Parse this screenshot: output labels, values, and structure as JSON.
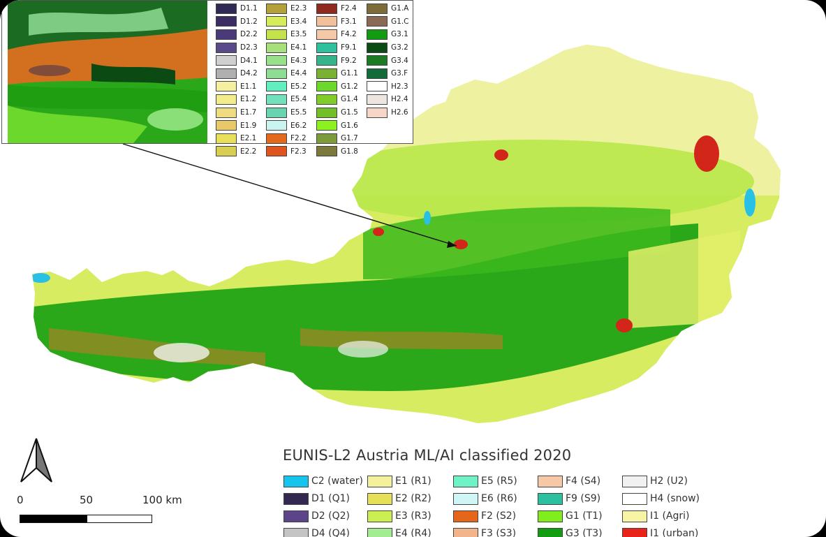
{
  "title": "EUNIS-L2 Austria ML/AI classified 2020",
  "scalebar": {
    "labels": [
      "0",
      "50",
      "100 km"
    ]
  },
  "colors": {
    "background": "#ffffff",
    "frame": "#000000",
    "forest": "#1f9e12",
    "grass": "#a8e53a",
    "agri": "#f3f1a0",
    "urban": "#d3261b",
    "water": "#29c0e6",
    "shrub": "#d2701f",
    "snow": "#f2f2f2"
  },
  "inset_legend": [
    [
      {
        "code": "D1.1",
        "color": "#2f2a55"
      },
      {
        "code": "D1.2",
        "color": "#3b2c63"
      },
      {
        "code": "D2.2",
        "color": "#4b3a7a"
      },
      {
        "code": "D2.3",
        "color": "#5a4a8a"
      },
      {
        "code": "D4.1",
        "color": "#d0d0d0"
      },
      {
        "code": "D4.2",
        "color": "#b0b0b0"
      },
      {
        "code": "E1.1",
        "color": "#f4f0a0"
      },
      {
        "code": "E1.2",
        "color": "#f3ec8a"
      },
      {
        "code": "E1.7",
        "color": "#efdc80"
      },
      {
        "code": "E1.9",
        "color": "#e9c86a"
      },
      {
        "code": "E2.1",
        "color": "#e8e05a"
      },
      {
        "code": "E2.2",
        "color": "#d8cf52"
      }
    ],
    [
      {
        "code": "E2.3",
        "color": "#b5a13a"
      },
      {
        "code": "E3.4",
        "color": "#d6ec5a"
      },
      {
        "code": "E3.5",
        "color": "#c4e34a"
      },
      {
        "code": "E4.1",
        "color": "#a7e07a"
      },
      {
        "code": "E4.3",
        "color": "#98e08a"
      },
      {
        "code": "E4.4",
        "color": "#8fdc94"
      },
      {
        "code": "E5.2",
        "color": "#62efc0"
      },
      {
        "code": "E5.4",
        "color": "#72e0bc"
      },
      {
        "code": "E5.5",
        "color": "#68d4b0"
      },
      {
        "code": "E6.2",
        "color": "#c9f4f0"
      },
      {
        "code": "F2.2",
        "color": "#e36a1c"
      },
      {
        "code": "F2.3",
        "color": "#e0551e"
      }
    ],
    [
      {
        "code": "F2.4",
        "color": "#8f2a1e"
      },
      {
        "code": "F3.1",
        "color": "#f3c09c"
      },
      {
        "code": "F4.2",
        "color": "#f5c9a8"
      },
      {
        "code": "F9.1",
        "color": "#2fc09e"
      },
      {
        "code": "F9.2",
        "color": "#35b48c"
      },
      {
        "code": "G1.1",
        "color": "#79b233"
      },
      {
        "code": "G1.2",
        "color": "#6cd82b"
      },
      {
        "code": "G1.4",
        "color": "#82cc2a"
      },
      {
        "code": "G1.5",
        "color": "#73bf2a"
      },
      {
        "code": "G1.6",
        "color": "#8df01f"
      },
      {
        "code": "G1.7",
        "color": "#7d9b3a"
      },
      {
        "code": "G1.8",
        "color": "#7b7a3c"
      }
    ],
    [
      {
        "code": "G1.A",
        "color": "#7d6b3a"
      },
      {
        "code": "G1.C",
        "color": "#8a6a55"
      },
      {
        "code": "G3.1",
        "color": "#139a13"
      },
      {
        "code": "G3.2",
        "color": "#0b4a12"
      },
      {
        "code": "G3.4",
        "color": "#1b7a22"
      },
      {
        "code": "G3.F",
        "color": "#146b3a"
      },
      {
        "code": "H2.3",
        "color": "#ffffff"
      },
      {
        "code": "H2.4",
        "color": "#ede6e0"
      },
      {
        "code": "H2.6",
        "color": "#f6d6c6"
      }
    ]
  ],
  "legend": [
    [
      {
        "label": "C2 (water)",
        "color": "#16c5ee"
      },
      {
        "label": "D1 (Q1)",
        "color": "#33284f"
      },
      {
        "label": "D2 (Q2)",
        "color": "#5b4489"
      },
      {
        "label": "D4 (Q4)",
        "color": "#c4c4c4"
      }
    ],
    [
      {
        "label": "E1 (R1)",
        "color": "#f4f09c"
      },
      {
        "label": "E2 (R2)",
        "color": "#e4e058"
      },
      {
        "label": "E3 (R3)",
        "color": "#cbee52"
      },
      {
        "label": "E4 (R4)",
        "color": "#a4ec90"
      }
    ],
    [
      {
        "label": "E5 (R5)",
        "color": "#6ff2c6"
      },
      {
        "label": "E6 (R6)",
        "color": "#cff6f4"
      },
      {
        "label": "F2 (S2)",
        "color": "#e4661a"
      },
      {
        "label": "F3 (S3)",
        "color": "#f2b48a"
      }
    ],
    [
      {
        "label": "F4 (S4)",
        "color": "#f6c8a6"
      },
      {
        "label": "F9 (S9)",
        "color": "#2dc0a0"
      },
      {
        "label": "G1 (T1)",
        "color": "#80ee1c"
      },
      {
        "label": "G3 (T3)",
        "color": "#129c12"
      }
    ],
    [
      {
        "label": "H2 (U2)",
        "color": "#f1f1f1"
      },
      {
        "label": "H4 (snow)",
        "color": "#ffffff"
      },
      {
        "label": "I1 (Agri)",
        "color": "#f8f4a6"
      },
      {
        "label": "I1 (urban)",
        "color": "#e8241a"
      }
    ]
  ]
}
